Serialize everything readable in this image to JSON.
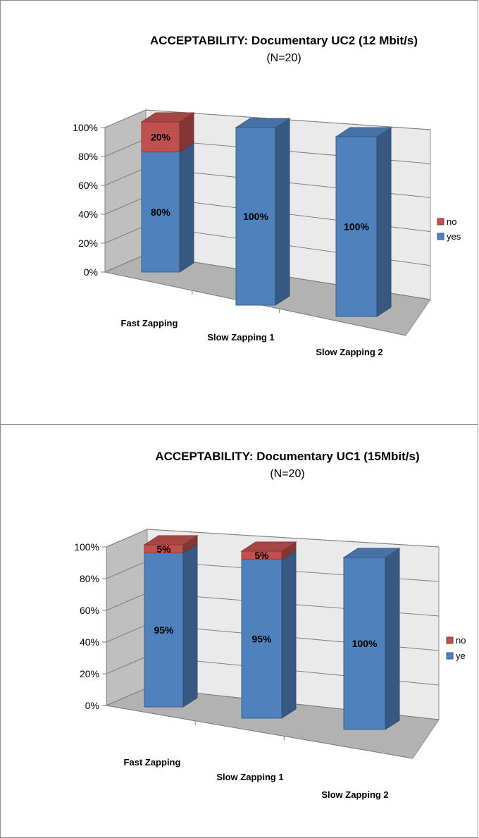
{
  "chart_data": [
    {
      "type": "bar",
      "stacked": true,
      "three_d": true,
      "title": "ACCEPTABILITY: Documentary UC2 (12 Mbit/s)",
      "subtitle": "(N=20)",
      "categories": [
        "Fast Zapping",
        "Slow Zapping 1",
        "Slow Zapping  2"
      ],
      "series": [
        {
          "name": "yes",
          "values": [
            80,
            100,
            100
          ],
          "labels": [
            "80%",
            "100%",
            "100%"
          ],
          "color": "#4f81bd"
        },
        {
          "name": "no",
          "values": [
            20,
            0,
            0
          ],
          "labels": [
            "20%",
            "",
            ""
          ],
          "color": "#c0504d"
        }
      ],
      "yticks": [
        "0%",
        "20%",
        "40%",
        "60%",
        "80%",
        "100%"
      ],
      "ylim": [
        0,
        100
      ],
      "grid": true,
      "legend": "right",
      "legend_entries": [
        "no",
        "yes"
      ]
    },
    {
      "type": "bar",
      "stacked": true,
      "three_d": true,
      "title": "ACCEPTABILITY: Documentary UC1 (15Mbit/s)",
      "subtitle": "(N=20)",
      "categories": [
        "Fast Zapping",
        "Slow Zapping 1",
        "Slow Zapping  2"
      ],
      "series": [
        {
          "name": "yes",
          "values": [
            95,
            95,
            100
          ],
          "labels": [
            "95%",
            "95%",
            "100%"
          ],
          "color": "#4f81bd"
        },
        {
          "name": "no",
          "values": [
            5,
            5,
            0
          ],
          "labels": [
            "5%",
            "5%",
            ""
          ],
          "color": "#c0504d"
        }
      ],
      "yticks": [
        "0%",
        "20%",
        "40%",
        "60%",
        "80%",
        "100%"
      ],
      "ylim": [
        0,
        100
      ],
      "grid": true,
      "legend": "right",
      "legend_entries": [
        "no",
        "ye"
      ]
    }
  ]
}
